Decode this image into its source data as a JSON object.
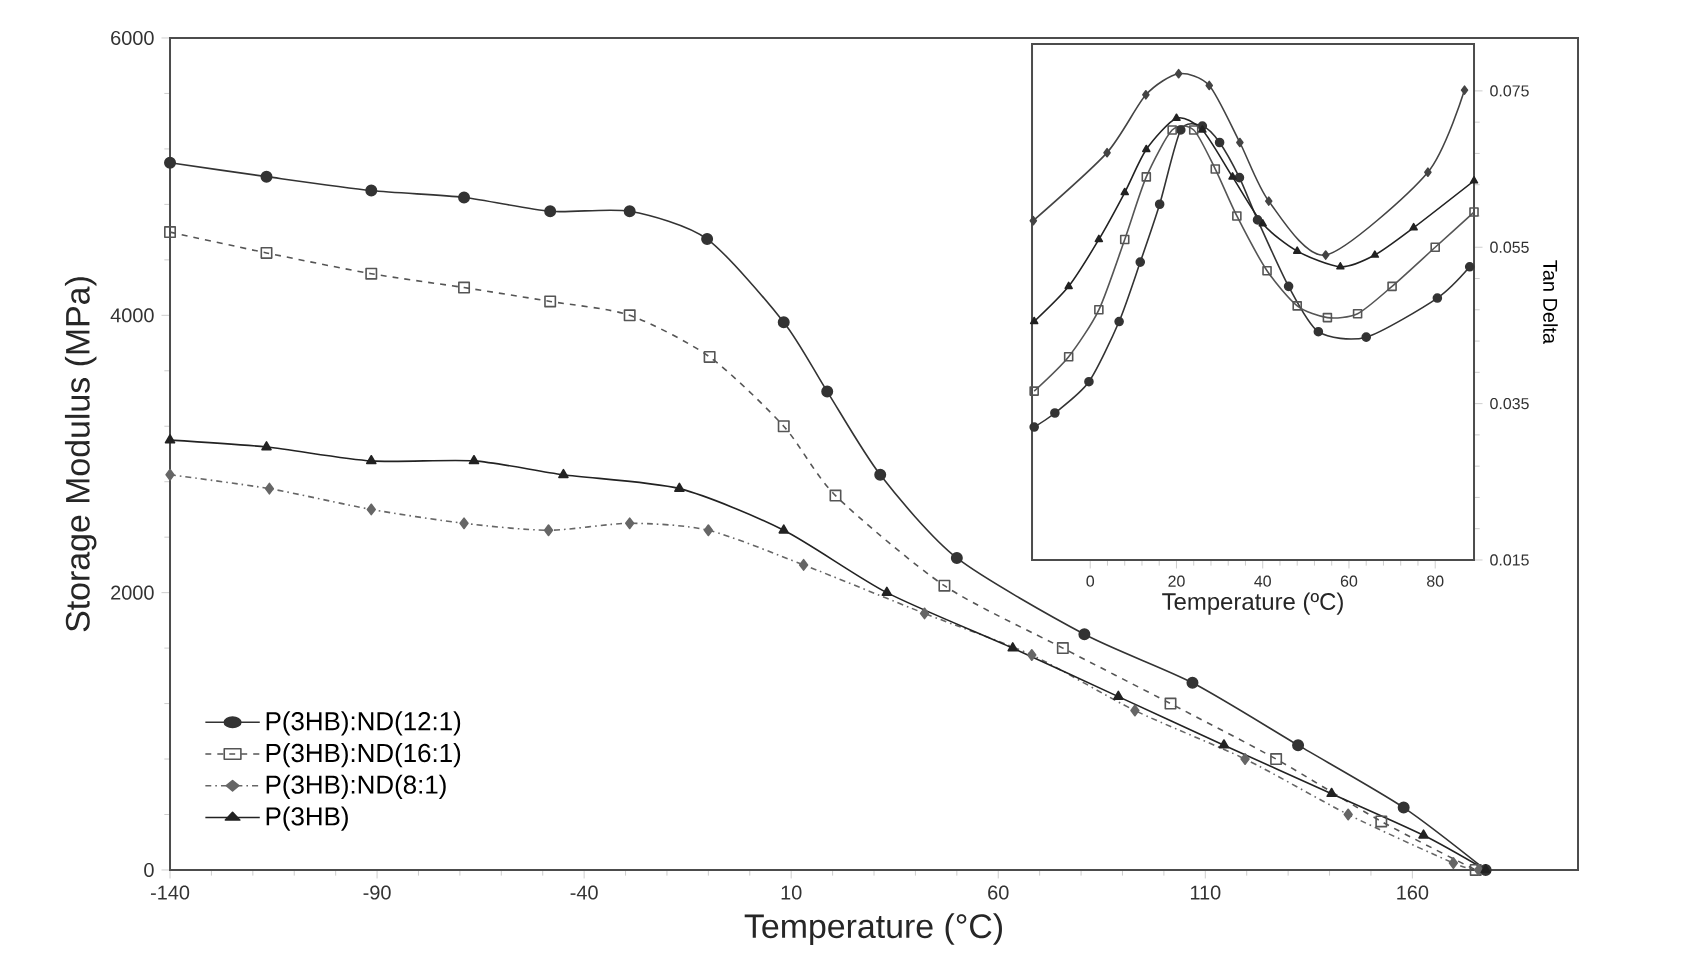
{
  "chart_data": [
    {
      "type": "line",
      "xlabel": "Temperature (°C)",
      "ylabel": "Storage Modulus (MPa)",
      "xlim": [
        -140,
        200
      ],
      "ylim": [
        0,
        6000
      ],
      "xticks": [
        -140,
        -90,
        -40,
        10,
        60,
        110,
        160
      ],
      "yticks": [
        0,
        2000,
        4000,
        6000
      ],
      "grid": false,
      "legend": "bottom left",
      "series": [
        {
          "name": "P(3HB):ND(12:1)",
          "color": "#333333",
          "marker": "circle",
          "line_style": "solid",
          "x": [
            -140,
            -116.7,
            -91.4,
            -69,
            -48.2,
            -29,
            -10.3,
            8.2,
            18.7,
            31.5,
            50,
            80.8,
            106.9,
            132.4,
            157.9,
            177.7
          ],
          "values": [
            5100,
            5000,
            4900,
            4850,
            4750,
            4750,
            4550,
            3950,
            3450,
            2850,
            2250,
            1700,
            1350,
            900,
            450,
            0
          ]
        },
        {
          "name": "P(3HB):ND(16:1)",
          "color": "#555555",
          "marker": "square",
          "line_style": "dashed",
          "x": [
            -140,
            -116.7,
            -91.4,
            -69,
            -48.2,
            -29,
            -9.7,
            8.2,
            20.7,
            47,
            75.6,
            101.6,
            127.1,
            152.5,
            175.3
          ],
          "values": [
            4600,
            4450,
            4300,
            4200,
            4100,
            4000,
            3700,
            3200,
            2700,
            2050,
            1600,
            1200,
            800,
            350,
            0
          ]
        },
        {
          "name": "P(3HB):ND(8:1)",
          "color": "#666666",
          "marker": "diamond",
          "line_style": "dotted",
          "x": [
            -140,
            -116,
            -91.4,
            -69,
            -48.6,
            -29,
            -10,
            13,
            42.2,
            68.1,
            93,
            119.6,
            144.5,
            169.9,
            176
          ],
          "values": [
            2850,
            2750,
            2600,
            2500,
            2450,
            2500,
            2450,
            2200,
            1850,
            1550,
            1150,
            800,
            400,
            50,
            0
          ]
        },
        {
          "name": "P(3HB)",
          "color": "#222222",
          "marker": "triangle",
          "line_style": "solid",
          "x": [
            -140,
            -116.7,
            -91.4,
            -66.6,
            -45,
            -17,
            8.2,
            33.1,
            63.5,
            89,
            114.5,
            140.5,
            162.7,
            177.7
          ],
          "values": [
            3100,
            3050,
            2950,
            2950,
            2850,
            2750,
            2450,
            2000,
            1600,
            1250,
            900,
            550,
            250,
            0
          ]
        }
      ]
    },
    {
      "type": "line",
      "xlabel": "Temperature (ºC)",
      "ylabel": "Tan Delta",
      "xlim": [
        -13.5,
        89
      ],
      "ylim": [
        0.015,
        0.081
      ],
      "xticks": [
        0,
        20,
        40,
        60,
        80
      ],
      "yticks": [
        0.015,
        0.035,
        0.055,
        0.075
      ],
      "grid": false,
      "series": [
        {
          "color": "#444444",
          "marker": "diamond",
          "line_style": "solid",
          "x": [
            -13.2,
            3.9,
            12.9,
            20.5,
            27.6,
            34.7,
            41.4,
            54.6,
            58.1,
            78.3,
            86.8
          ],
          "values": [
            0.0584,
            0.0671,
            0.0745,
            0.0772,
            0.0757,
            0.0684,
            0.0609,
            0.054,
            null,
            0.0646,
            0.0751
          ]
        },
        {
          "color": "#333333",
          "marker": "circle",
          "line_style": "solid",
          "x": [
            -13,
            -8.2,
            -0.3,
            6.7,
            11.6,
            16.1,
            21,
            26,
            30,
            34.6,
            38.8,
            46,
            52.9,
            64,
            80.5,
            88
          ],
          "values": [
            0.032,
            0.0338,
            0.0378,
            0.0455,
            0.0531,
            0.0605,
            0.07,
            0.0705,
            0.0684,
            0.0639,
            0.0585,
            0.05,
            0.0442,
            0.0435,
            0.0485,
            0.0525
          ]
        },
        {
          "color": "#555555",
          "marker": "square",
          "line_style": "solid",
          "x": [
            -13,
            -5,
            2,
            8,
            13,
            19,
            24,
            29,
            34,
            41,
            48,
            55,
            62,
            70,
            80,
            89
          ],
          "values": [
            0.0366,
            0.041,
            0.047,
            0.056,
            0.064,
            0.07,
            0.07,
            0.065,
            0.059,
            0.052,
            0.0475,
            0.046,
            0.0465,
            0.05,
            0.055,
            0.0595
          ]
        },
        {
          "color": "#222222",
          "marker": "triangle",
          "line_style": "solid",
          "x": [
            -13,
            -5,
            2,
            8,
            13,
            20,
            26,
            33,
            40,
            48,
            58,
            66,
            75,
            89
          ],
          "values": [
            0.0455,
            0.05,
            0.056,
            0.062,
            0.0675,
            0.0715,
            0.07,
            0.064,
            0.058,
            0.0545,
            0.0525,
            0.054,
            0.0575,
            0.0635
          ]
        }
      ]
    }
  ]
}
